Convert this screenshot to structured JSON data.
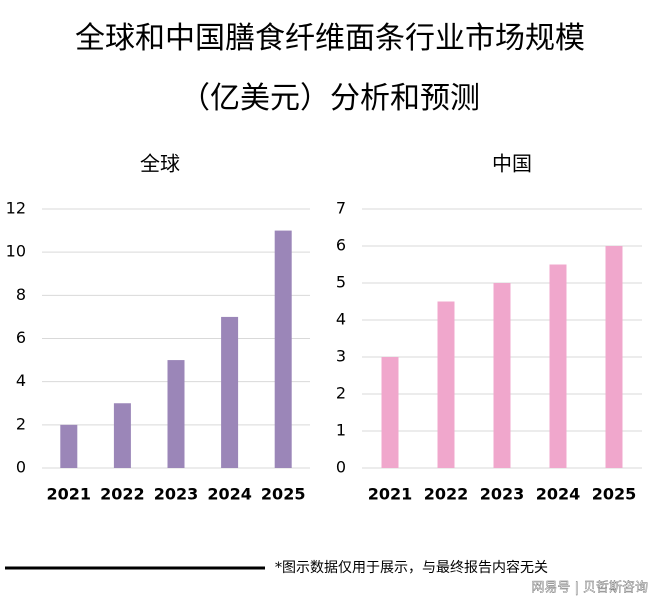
{
  "title_lines": [
    "全球和中国膳食纤维面条行业市场规模",
    "（亿美元）分析和预测"
  ],
  "chart_data": [
    {
      "type": "bar",
      "title": "全球",
      "categories": [
        "2021",
        "2022",
        "2023",
        "2024",
        "2025"
      ],
      "values": [
        2,
        3,
        5,
        7,
        11
      ],
      "color": "#9b86b8",
      "ylim": [
        0,
        12
      ],
      "yticks": [
        0,
        2,
        4,
        6,
        8,
        10,
        12
      ],
      "grid": true
    },
    {
      "type": "bar",
      "title": "中国",
      "categories": [
        "2021",
        "2022",
        "2023",
        "2024",
        "2025"
      ],
      "values": [
        3,
        4.5,
        5,
        5.5,
        6
      ],
      "color": "#f0a7cc",
      "ylim": [
        0,
        7
      ],
      "yticks": [
        0,
        1,
        2,
        3,
        4,
        5,
        6,
        7
      ],
      "grid": true
    }
  ],
  "footnote": "*图示数据仅用于展示，与最终报告内容无关",
  "watermark": "网易号 | 贝哲斯咨询"
}
